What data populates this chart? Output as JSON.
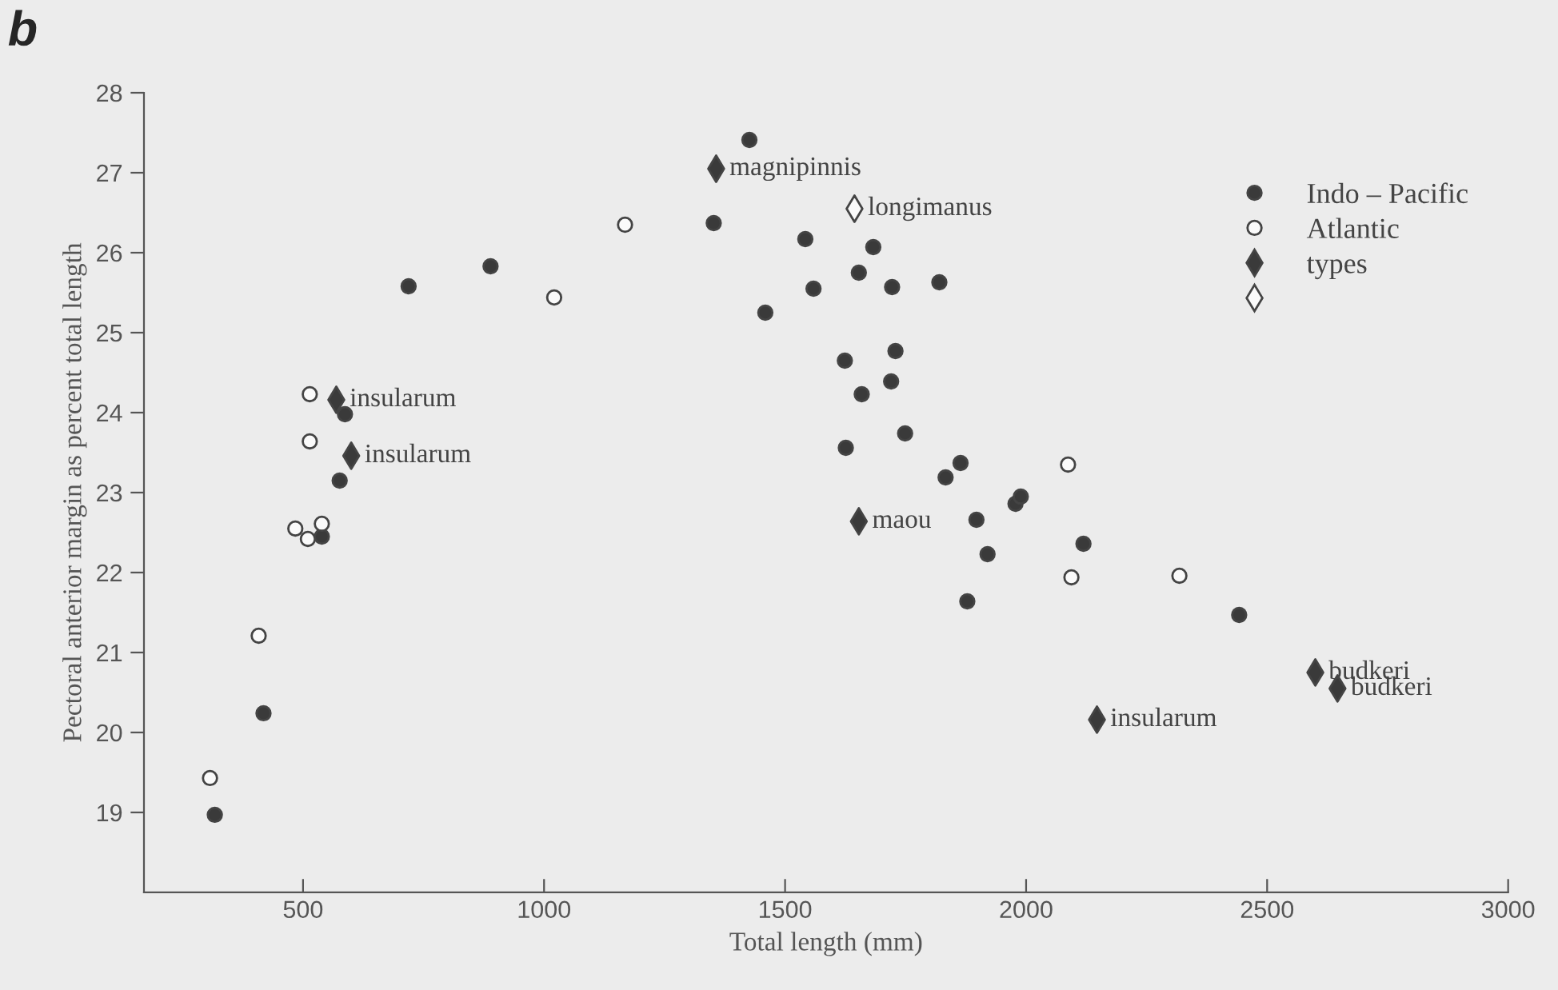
{
  "chart_data": {
    "type": "scatter",
    "title": "b",
    "xlabel": "Total length (mm)",
    "ylabel": "Pectoral anterior margin as percent total length",
    "xlim": [
      170,
      3000
    ],
    "xticks": [
      500,
      1000,
      1500,
      2000,
      2500,
      3000
    ],
    "ylim": [
      18,
      28
    ],
    "yticks": [
      19,
      20,
      21,
      22,
      23,
      24,
      25,
      26,
      27,
      28
    ],
    "grid": false,
    "legend": "top right",
    "series": [
      {
        "name": "Indo – Pacific",
        "color": "#3a3a3a",
        "marker": "circle",
        "x": [
          1426,
          1352,
          1542,
          1653,
          1559,
          1459,
          889,
          719,
          1624,
          1659,
          1626,
          587,
          576,
          539,
          1683,
          1722,
          1820,
          1729,
          1720,
          1749,
          1864,
          1833,
          1978,
          1989,
          1897,
          2119,
          1920,
          1878,
          2442,
          418,
          317
        ],
        "values": [
          27.41,
          26.37,
          26.17,
          25.75,
          25.55,
          25.25,
          25.83,
          25.58,
          24.65,
          24.23,
          23.56,
          23.98,
          23.15,
          22.45,
          26.07,
          25.57,
          25.63,
          24.77,
          24.39,
          23.74,
          23.37,
          23.19,
          22.86,
          22.95,
          22.66,
          22.36,
          22.23,
          21.64,
          21.47,
          20.24,
          18.97
        ]
      },
      {
        "name": "Atlantic",
        "color": "#fafafa",
        "marker": "circle",
        "x": [
          1168,
          1021,
          514,
          514,
          484,
          510,
          539,
          2087,
          2094,
          2318,
          408,
          307
        ],
        "values": [
          26.35,
          25.44,
          24.23,
          23.64,
          22.55,
          22.42,
          22.61,
          23.35,
          21.94,
          21.96,
          21.21,
          19.43
        ]
      },
      {
        "name": "types",
        "color": "#3a3a3a",
        "marker": "diamond",
        "x": [
          1357,
          569,
          600,
          1653,
          2600,
          2646,
          2147
        ],
        "values": [
          27.05,
          24.16,
          23.46,
          22.64,
          20.75,
          20.55,
          20.16
        ]
      },
      {
        "color": "#fafafa",
        "marker": "diamond",
        "x": [
          1644
        ],
        "values": [
          26.55
        ]
      }
    ],
    "annotations": [
      {
        "text": "magnipinnis",
        "x": 1357,
        "y": 27.05
      },
      {
        "text": "longimanus",
        "x": 1644,
        "y": 26.55
      },
      {
        "text": "insularum",
        "x": 569,
        "y": 24.16
      },
      {
        "text": "insularum",
        "x": 600,
        "y": 23.46
      },
      {
        "text": "maou",
        "x": 1653,
        "y": 22.64
      },
      {
        "text": "budkeri",
        "x": 2600,
        "y": 20.75
      },
      {
        "text": "budkeri",
        "x": 2646,
        "y": 20.55
      },
      {
        "text": "insularum",
        "x": 2147,
        "y": 20.16
      }
    ]
  }
}
